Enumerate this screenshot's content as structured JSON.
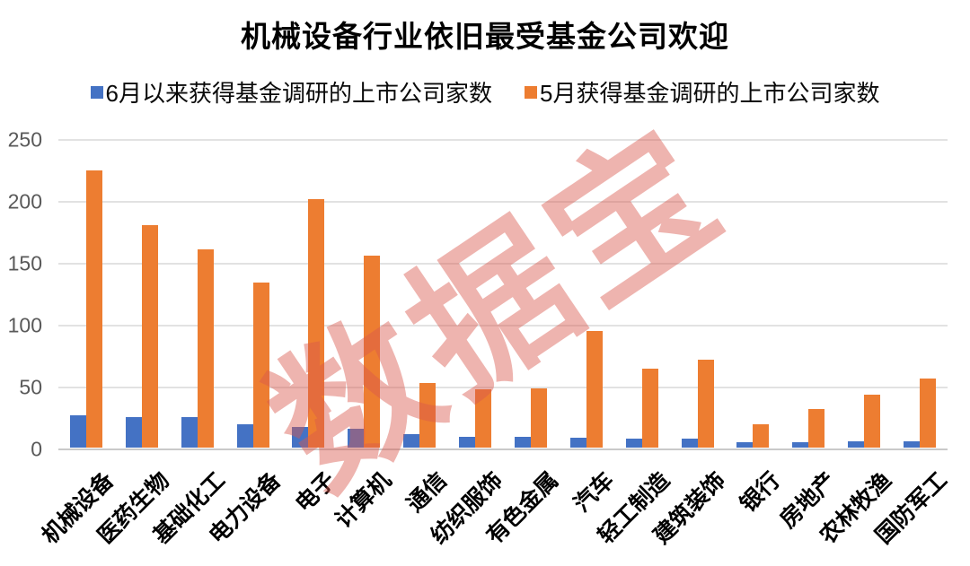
{
  "title": "机械设备行业依旧最受基金公司欢迎",
  "watermark": "数据宝",
  "legend": [
    {
      "label": "6月以来获得基金调研的上市公司家数",
      "color": "#4472C4"
    },
    {
      "label": "5月获得基金调研的上市公司家数",
      "color": "#ED7D31"
    }
  ],
  "chart_data": {
    "type": "bar",
    "title": "机械设备行业依旧最受基金公司欢迎",
    "categories": [
      "机械设备",
      "医药生物",
      "基础化工",
      "电力设备",
      "电子",
      "计算机",
      "通信",
      "纺织服饰",
      "有色金属",
      "汽车",
      "轻工制造",
      "建筑装饰",
      "银行",
      "房地产",
      "农林牧渔",
      "国防军工"
    ],
    "series": [
      {
        "name": "6月以来获得基金调研的上市公司家数",
        "color": "#4472C4",
        "values": [
          26,
          25,
          25,
          19,
          17,
          15,
          11,
          9,
          9,
          8,
          7,
          7,
          4,
          4,
          5,
          5
        ]
      },
      {
        "name": "5月获得基金调研的上市公司家数",
        "color": "#ED7D31",
        "values": [
          224,
          180,
          160,
          133,
          201,
          155,
          52,
          47,
          48,
          94,
          64,
          71,
          19,
          31,
          43,
          56
        ]
      }
    ],
    "xlabel": "",
    "ylabel": "",
    "ylim": [
      0,
      250
    ],
    "yticks": [
      0,
      50,
      100,
      150,
      200,
      250
    ],
    "grid": true,
    "legend_position": "top",
    "x_label_rotation": -45
  },
  "colors": {
    "gridline": "#E2E2E2",
    "axis_line": "#C9C9C9",
    "axis_text": "#595959",
    "watermark": "rgba(217,88,78,0.45)"
  }
}
